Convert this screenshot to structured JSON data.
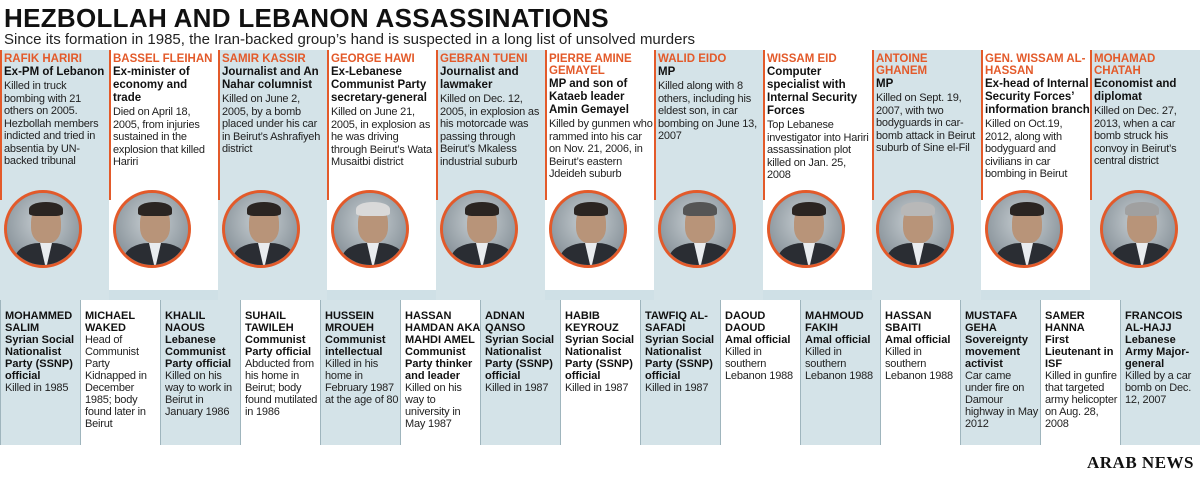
{
  "header": {
    "title": "HEZBOLLAH AND LEBANON ASSASSINATIONS",
    "subtitle": "Since its formation in 1985, the Iran-backed group’s hand is suspected in a long list of unsolved murders"
  },
  "top": [
    {
      "name": "RAFIK HARIRI",
      "role": "Ex-PM of Lebanon",
      "detail": "Killed in truck bombing with 21 others on 2005. Hezbollah members indicted and tried in absentia by UN-backed tribunal"
    },
    {
      "name": "BASSEL FLEIHAN",
      "role": "Ex-minister of economy and trade",
      "detail": "Died on April 18, 2005, from injuries sustained in the explosion that killed Hariri"
    },
    {
      "name": "SAMIR KASSIR",
      "role": "Journalist and An Nahar columnist",
      "detail": "Killed on June 2, 2005, by a bomb placed under his car in Beirut’s Ashrafiyeh district"
    },
    {
      "name": "GEORGE HAWI",
      "role": "Ex-Lebanese Communist Party secretary-general",
      "detail": "Killed on June 21, 2005, in explosion as he was driving through Beirut’s Wata Musaitbi district"
    },
    {
      "name": "GEBRAN TUENI",
      "role": "Journalist and lawmaker",
      "detail": "Killed on Dec. 12, 2005, in explosion as his motorcade was passing through Beirut’s Mkaless industrial suburb"
    },
    {
      "name": "PIERRE AMINE GEMAYEL",
      "role": "MP and son of Kataeb leader Amin Gemayel",
      "detail": "Killed by gunmen who rammed into his car on Nov. 21, 2006, in Beirut’s eastern Jdeideh suburb"
    },
    {
      "name": "WALID EIDO",
      "role": "MP",
      "detail": "Killed along with 8 others, including his eldest son, in car bombing on June 13, 2007"
    },
    {
      "name": "WISSAM EID",
      "role": "Computer specialist with Internal Security Forces",
      "detail": "Top Lebanese investigator into Hariri assassination plot killed on Jan. 25, 2008"
    },
    {
      "name": "ANTOINE GHANEM",
      "role": "MP",
      "detail": "Killed on Sept. 19, 2007, with two bodyguards in car-bomb attack in Beirut suburb of Sine el-Fil"
    },
    {
      "name": "GEN. WISSAM AL-HASSAN",
      "role": "Ex-head of Internal Security Forces’ information branch",
      "detail": "Killed on Oct.19, 2012, along with bodyguard and civilians in car bombing in Beirut"
    },
    {
      "name": "MOHAMAD CHATAH",
      "role": "Economist and diplomat",
      "detail": "Killed on Dec. 27, 2013, when a car bomb struck his convoy in Beirut’s central district"
    }
  ],
  "bottom": [
    {
      "name": "MOHAMMED SALIM",
      "role": "Syrian Social Nationalist Party (SSNP) official",
      "detail": "Killed in 1985"
    },
    {
      "name": "MICHAEL WAKED",
      "role": "",
      "detail": "Head of Communist Party Kidnapped in December 1985; body found later in Beirut"
    },
    {
      "name": "KHALIL NAOUS",
      "role": "Lebanese Communist Party official",
      "detail": "Killed on his way to work in Beirut in January 1986"
    },
    {
      "name": "SUHAIL TAWILEH",
      "role": "Communist Party official",
      "detail": "Abducted from his home in Beirut; body found mutilated in 1986"
    },
    {
      "name": "HUSSEIN MROUEH",
      "role": "Communist intellectual",
      "detail": "Killed in his home in February 1987 at the age of 80"
    },
    {
      "name": "HASSAN HAMDAN AKA MAHDI AMEL",
      "role": "Communist Party thinker and leader",
      "detail": "Killed on his way to university in May 1987"
    },
    {
      "name": "ADNAN QANSO",
      "role": "Syrian Social Nationalist Party (SSNP) official",
      "detail": "Killed in 1987"
    },
    {
      "name": "HABIB KEYROUZ",
      "role": "Syrian Social Nationalist Party (SSNP) official",
      "detail": "Killed in 1987"
    },
    {
      "name": "TAWFIQ AL-SAFADI",
      "role": "Syrian Social Nationalist Party (SSNP) official",
      "detail": "Killed in 1987"
    },
    {
      "name": "DAOUD DAOUD",
      "role": "Amal official",
      "detail": "Killed in southern Lebanon 1988"
    },
    {
      "name": "MAHMOUD FAKIH",
      "role": "Amal official",
      "detail": "Killed in southern Lebanon 1988"
    },
    {
      "name": "HASSAN SBAITI",
      "role": "Amal official",
      "detail": "Killed in southern Lebanon 1988"
    },
    {
      "name": "MUSTAFA GEHA",
      "role": "Sovereignty movement activist",
      "detail": "Car came under fire on Damour highway in May 2012"
    },
    {
      "name": "SAMER HANNA",
      "role": "First Lieutenant in ISF",
      "detail": "Killed in gunfire that targeted army helicopter on Aug. 28, 2008"
    },
    {
      "name": "FRANCOIS AL-HAJJ",
      "role": "Lebanese Army Major-general",
      "detail": "Killed by a car bomb on Dec. 12, 2007"
    }
  ],
  "logo": "ARAB NEWS"
}
